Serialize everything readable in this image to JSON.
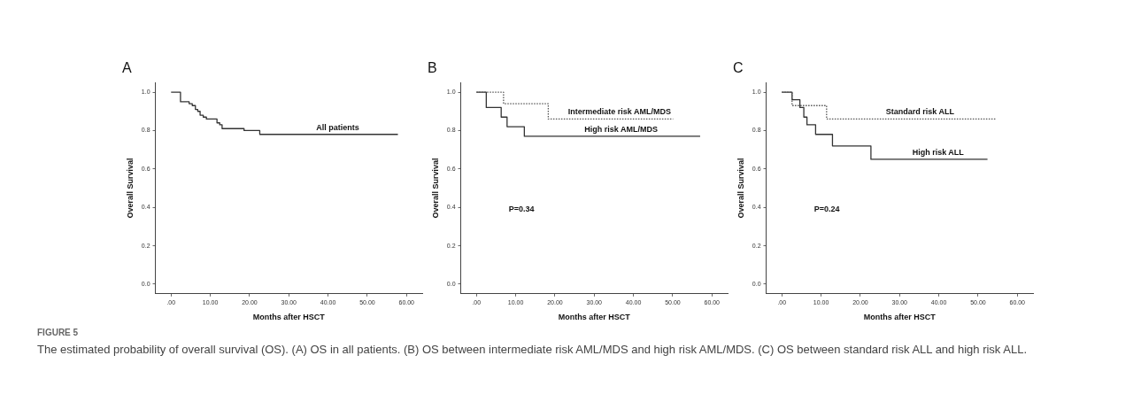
{
  "chart_data": [
    {
      "type": "step",
      "title": "A",
      "xlabel": "Months after HSCT",
      "ylabel": "Overall Survival",
      "xlim": [
        -4,
        64
      ],
      "ylim": [
        -0.05,
        1.05
      ],
      "xticks": [
        {
          "value": 0,
          "label": ".00"
        },
        {
          "value": 10,
          "label": "10.00"
        },
        {
          "value": 20,
          "label": "20.00"
        },
        {
          "value": 30,
          "label": "30.00"
        },
        {
          "value": 40,
          "label": "40.00"
        },
        {
          "value": 50,
          "label": "50.00"
        },
        {
          "value": 60,
          "label": "60.00"
        }
      ],
      "yticks": [
        {
          "value": 0,
          "label": "0.0"
        },
        {
          "value": 0.2,
          "label": "0.2"
        },
        {
          "value": 0.4,
          "label": "0.4"
        },
        {
          "value": 0.6,
          "label": "0.6"
        },
        {
          "value": 0.8,
          "label": "0.8"
        },
        {
          "value": 1,
          "label": "1.0"
        }
      ],
      "grid": false,
      "legend": false,
      "annotations": [
        "FIGURE 5",
        "The estimated probability of overall survival (OS). (A) OS in all patients. (B) OS between intermediate risk AML/MDS and high risk AML/MDS. (C) OS between standard risk ALL and high risk ALL."
      ],
      "series": [
        {
          "name": "All patients",
          "color": "#333333",
          "line_style": "solid",
          "x": [
            0,
            2.4,
            4.6,
            5.4,
            6.2,
            6.8,
            7.4,
            8.2,
            9.0,
            11.7,
            12.4,
            13.0,
            18.6,
            22.6,
            57.8
          ],
          "values": [
            1.0,
            0.95,
            0.94,
            0.93,
            0.91,
            0.9,
            0.88,
            0.87,
            0.86,
            0.84,
            0.83,
            0.81,
            0.8,
            0.78,
            0.78
          ]
        }
      ]
    },
    {
      "type": "step",
      "title": "B",
      "xlabel": "Months after HSCT",
      "ylabel": "Overall Survival",
      "xlim": [
        -4,
        64
      ],
      "ylim": [
        -0.05,
        1.05
      ],
      "xticks": [
        {
          "value": 0,
          "label": ".00"
        },
        {
          "value": 10,
          "label": "10.00"
        },
        {
          "value": 20,
          "label": "20.00"
        },
        {
          "value": 30,
          "label": "30.00"
        },
        {
          "value": 40,
          "label": "40.00"
        },
        {
          "value": 50,
          "label": "50.00"
        },
        {
          "value": 60,
          "label": "60.00"
        }
      ],
      "yticks": [
        {
          "value": 0,
          "label": "0.0"
        },
        {
          "value": 0.2,
          "label": "0.2"
        },
        {
          "value": 0.4,
          "label": "0.4"
        },
        {
          "value": 0.6,
          "label": "0.6"
        },
        {
          "value": 0.8,
          "label": "0.8"
        },
        {
          "value": 1,
          "label": "1.0"
        }
      ],
      "grid": false,
      "legend": false,
      "annotations": [
        "P=0.34"
      ],
      "series": [
        {
          "name": "Intermediate risk AML/MDS",
          "color": "#555555",
          "line_style": "dotted",
          "x": [
            0,
            6.9,
            18.3,
            50.1
          ],
          "values": [
            1.0,
            0.94,
            0.86,
            0.86
          ]
        },
        {
          "name": "High risk AML/MDS",
          "color": "#333333",
          "line_style": "solid",
          "x": [
            0,
            2.5,
            6.3,
            7.8,
            12.2,
            57.0
          ],
          "values": [
            1.0,
            0.92,
            0.87,
            0.82,
            0.77,
            0.77
          ]
        }
      ]
    },
    {
      "type": "step",
      "title": "C",
      "xlabel": "Months after HSCT",
      "ylabel": "Overall Survival",
      "xlim": [
        -4,
        64
      ],
      "ylim": [
        -0.05,
        1.05
      ],
      "xticks": [
        {
          "value": 0,
          "label": ".00"
        },
        {
          "value": 10,
          "label": "10.00"
        },
        {
          "value": 20,
          "label": "20.00"
        },
        {
          "value": 30,
          "label": "30.00"
        },
        {
          "value": 40,
          "label": "40.00"
        },
        {
          "value": 50,
          "label": "50.00"
        },
        {
          "value": 60,
          "label": "60.00"
        }
      ],
      "yticks": [
        {
          "value": 0,
          "label": "0.0"
        },
        {
          "value": 0.2,
          "label": "0.2"
        },
        {
          "value": 0.4,
          "label": "0.4"
        },
        {
          "value": 0.6,
          "label": "0.6"
        },
        {
          "value": 0.8,
          "label": "0.8"
        },
        {
          "value": 1,
          "label": "1.0"
        }
      ],
      "grid": false,
      "legend": false,
      "annotations": [
        "P=0.24"
      ],
      "series": [
        {
          "name": "Standard risk ALL",
          "color": "#555555",
          "line_style": "dotted",
          "x": [
            0,
            2.6,
            11.4,
            54.5
          ],
          "values": [
            1.0,
            0.93,
            0.86,
            0.86
          ]
        },
        {
          "name": "High risk ALL",
          "color": "#333333",
          "line_style": "solid",
          "x": [
            0,
            2.6,
            4.6,
            5.6,
            6.4,
            8.6,
            12.9,
            22.7,
            52.4
          ],
          "values": [
            1.0,
            0.96,
            0.92,
            0.87,
            0.83,
            0.78,
            0.72,
            0.65,
            0.65
          ]
        }
      ]
    }
  ]
}
